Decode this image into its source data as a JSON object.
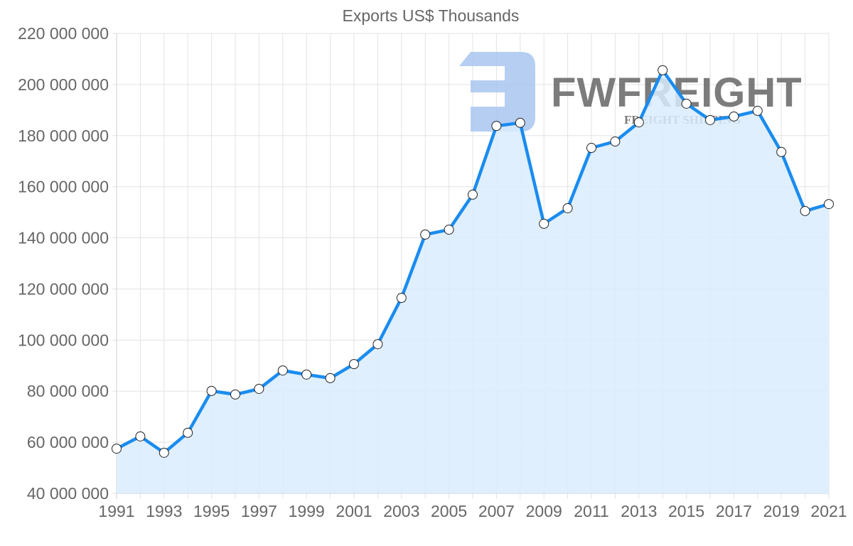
{
  "chart_data": {
    "type": "area",
    "title": "Exports US$ Thousands",
    "xlabel": "",
    "ylabel": "",
    "ylim": [
      40000000,
      220000000
    ],
    "y_ticks": [
      40000000,
      60000000,
      80000000,
      100000000,
      120000000,
      140000000,
      160000000,
      180000000,
      200000000,
      220000000
    ],
    "y_tick_labels": [
      "40 000 000",
      "60 000 000",
      "80 000 000",
      "100 000 000",
      "120 000 000",
      "140 000 000",
      "160 000 000",
      "180 000 000",
      "200 000 000",
      "220 000 000"
    ],
    "x": [
      1991,
      1992,
      1993,
      1994,
      1995,
      1996,
      1997,
      1998,
      1999,
      2000,
      2001,
      2002,
      2003,
      2004,
      2005,
      2006,
      2007,
      2008,
      2009,
      2010,
      2011,
      2012,
      2013,
      2014,
      2015,
      2016,
      2017,
      2018,
      2019,
      2020,
      2021
    ],
    "x_tick_labels": [
      "1991",
      "1993",
      "1995",
      "1997",
      "1999",
      "2001",
      "2003",
      "2005",
      "2007",
      "2009",
      "2011",
      "2013",
      "2015",
      "2017",
      "2019",
      "2021"
    ],
    "series": [
      {
        "name": "Exports US$ Thousands",
        "values": [
          57500000,
          62300000,
          55900000,
          63700000,
          80100000,
          78700000,
          80900000,
          88100000,
          86500000,
          85100000,
          90600000,
          98400000,
          116500000,
          141300000,
          143200000,
          156900000,
          183800000,
          185000000,
          145500000,
          151600000,
          175200000,
          177700000,
          185200000,
          205600000,
          192500000,
          186100000,
          187500000,
          189700000,
          173600000,
          150500000,
          153200000
        ]
      }
    ],
    "grid": true,
    "legend": "none"
  },
  "colors": {
    "line": "#1a8cf0",
    "fill": "#d9ecfd",
    "point_fill": "#ffffff",
    "point_stroke": "#222222",
    "watermark": "#a9c5f0"
  },
  "watermark": {
    "brand": "FWFREIGHT",
    "tagline": "FREIGHT SHIPPING"
  }
}
